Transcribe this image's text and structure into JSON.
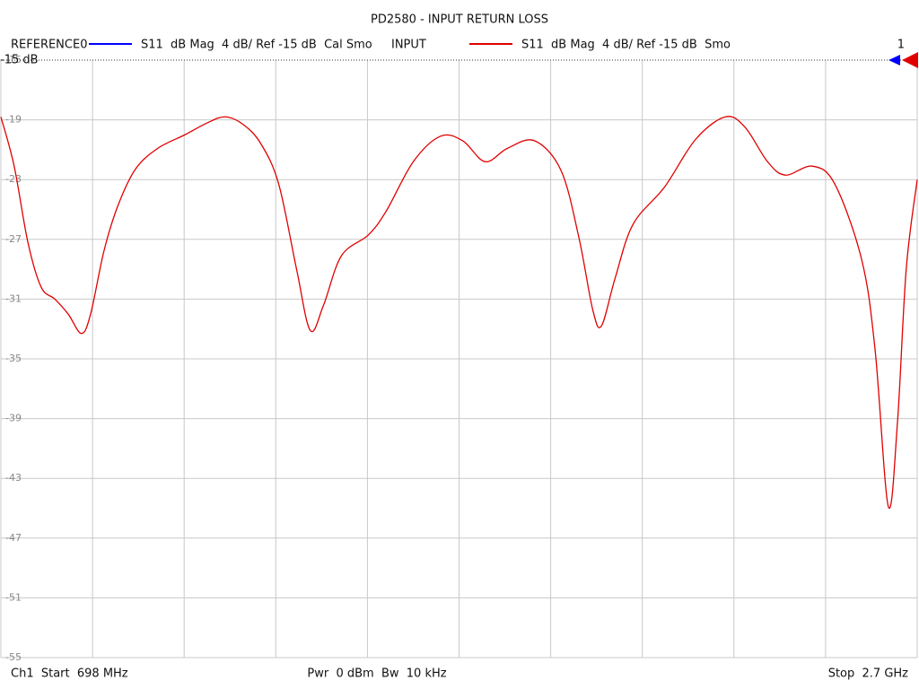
{
  "chart_data": {
    "type": "line",
    "title": "PD2580 - INPUT RETURN LOSS",
    "reference_trace": {
      "name": "REFERENCE0",
      "description": "S11  dB Mag  4 dB/ Ref -15 dB  Cal Smo",
      "color": "#0000ff"
    },
    "channel_marker": "1",
    "reference_level": {
      "value": -15,
      "label": "-15 dB"
    },
    "series": [
      {
        "name": "INPUT",
        "description": "S11  dB Mag  4 dB/ Ref -15 dB  Smo",
        "color": "#e00000",
        "x": [
          698,
          727,
          757,
          786,
          816,
          845,
          874,
          894,
          923,
          953,
          992,
          1041,
          1100,
          1149,
          1188,
          1227,
          1266,
          1305,
          1344,
          1374,
          1403,
          1442,
          1501,
          1540,
          1599,
          1658,
          1707,
          1756,
          1805,
          1864,
          1922,
          1961,
          1991,
          2010,
          2040,
          2079,
          2148,
          2216,
          2281,
          2324,
          2373,
          2412,
          2471,
          2520,
          2579,
          2608,
          2637,
          2657,
          2676,
          2700
        ],
        "values": [
          -18.8,
          -22.1,
          -27.2,
          -30.2,
          -31.0,
          -32.0,
          -33.3,
          -32.0,
          -27.8,
          -24.8,
          -22.3,
          -20.9,
          -20.0,
          -19.2,
          -18.8,
          -19.3,
          -20.6,
          -23.3,
          -29.0,
          -33.1,
          -31.4,
          -28.1,
          -26.7,
          -25.1,
          -21.8,
          -20.1,
          -20.4,
          -21.8,
          -20.9,
          -20.4,
          -22.4,
          -26.9,
          -31.7,
          -32.8,
          -29.6,
          -26.0,
          -23.5,
          -20.3,
          -18.8,
          -19.5,
          -21.8,
          -22.7,
          -22.1,
          -23.3,
          -28.4,
          -34.4,
          -44.9,
          -39.2,
          -29.0,
          -23.0
        ]
      }
    ],
    "xlim": [
      698,
      2700
    ],
    "xticks": [
      698,
      898.2,
      1098.4,
      1298.6,
      1498.8,
      1699,
      1899.2,
      2099.4,
      2299.6,
      2499.8,
      2700
    ],
    "ylim": [
      -55,
      -15
    ],
    "yticks": [
      -15,
      -19,
      -23,
      -27,
      -31,
      -35,
      -39,
      -43,
      -47,
      -51,
      -55
    ],
    "grid": true,
    "footer": {
      "start": "Ch1  Start  698 MHz",
      "center": "Pwr  0 dBm  Bw  10 kHz",
      "stop": "Stop  2.7 GHz"
    }
  }
}
